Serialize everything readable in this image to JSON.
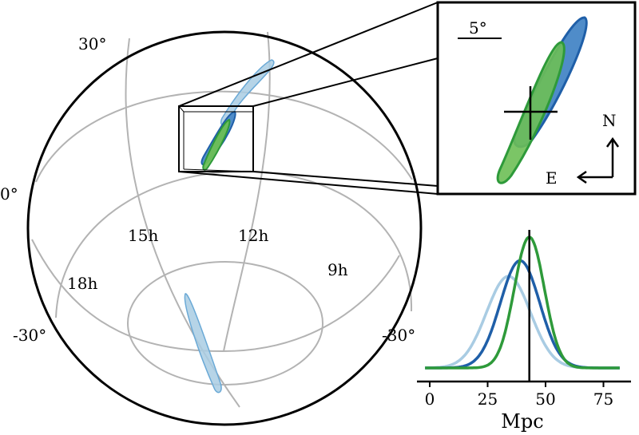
{
  "colors": {
    "light_blue": "#a9cce3",
    "light_blue_edge": "#6aa9d6",
    "blue": "#1f5fa8",
    "blue_fill": "#4f8cc9",
    "green": "#2e9a3a",
    "green_fill": "#6dbf55",
    "grid": "#b3b3b3",
    "frame": "#000000"
  },
  "sky_map": {
    "dec_labels": [
      "30°",
      "0°",
      "-30°",
      "-30°"
    ],
    "ra_labels": [
      "15h",
      "12h",
      "18h",
      "9h"
    ]
  },
  "inset": {
    "scale_label": "5°",
    "compass": {
      "north": "N",
      "east": "E"
    }
  },
  "chart_data": {
    "type": "line",
    "xlabel": "Mpc",
    "x_ticks": [
      "0",
      "25",
      "50",
      "75"
    ],
    "xlim": [
      0,
      80
    ],
    "marker_x": 43,
    "series": [
      {
        "color": "#a9cce3",
        "peak_x": 34,
        "sigma": 9.5,
        "peak": 0.7
      },
      {
        "color": "#1f5fa8",
        "peak_x": 39,
        "sigma": 8.5,
        "peak": 0.82
      },
      {
        "color": "#2e9a3a",
        "peak_x": 43,
        "sigma": 6.5,
        "peak": 1.0
      }
    ]
  }
}
